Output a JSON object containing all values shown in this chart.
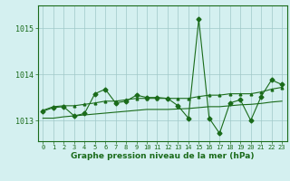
{
  "x": [
    0,
    1,
    2,
    3,
    4,
    5,
    6,
    7,
    8,
    9,
    10,
    11,
    12,
    13,
    14,
    15,
    16,
    17,
    18,
    19,
    20,
    21,
    22,
    23
  ],
  "y_main": [
    1013.2,
    1013.28,
    1013.3,
    1013.1,
    1013.15,
    1013.58,
    1013.68,
    1013.38,
    1013.42,
    1013.55,
    1013.5,
    1013.5,
    1013.48,
    1013.32,
    1013.05,
    1015.2,
    1013.05,
    1012.72,
    1013.38,
    1013.45,
    1013.0,
    1013.52,
    1013.88,
    1013.78
  ],
  "y_upper": [
    1013.22,
    1013.3,
    1013.32,
    1013.32,
    1013.35,
    1013.38,
    1013.42,
    1013.42,
    1013.45,
    1013.48,
    1013.48,
    1013.48,
    1013.48,
    1013.48,
    1013.48,
    1013.52,
    1013.55,
    1013.55,
    1013.58,
    1013.58,
    1013.58,
    1013.62,
    1013.68,
    1013.72
  ],
  "y_lower": [
    1013.05,
    1013.05,
    1013.08,
    1013.1,
    1013.12,
    1013.14,
    1013.16,
    1013.18,
    1013.2,
    1013.22,
    1013.24,
    1013.24,
    1013.24,
    1013.25,
    1013.26,
    1013.28,
    1013.3,
    1013.3,
    1013.32,
    1013.34,
    1013.35,
    1013.37,
    1013.4,
    1013.42
  ],
  "line_color": "#1a6b1a",
  "bg_color": "#d4f0f0",
  "grid_color": "#a0c8c8",
  "text_color": "#1a6b1a",
  "xlabel": "Graphe pression niveau de la mer (hPa)",
  "ylim": [
    1012.55,
    1015.5
  ],
  "yticks": [
    1013,
    1014,
    1015
  ],
  "xlim": [
    -0.5,
    23.5
  ]
}
